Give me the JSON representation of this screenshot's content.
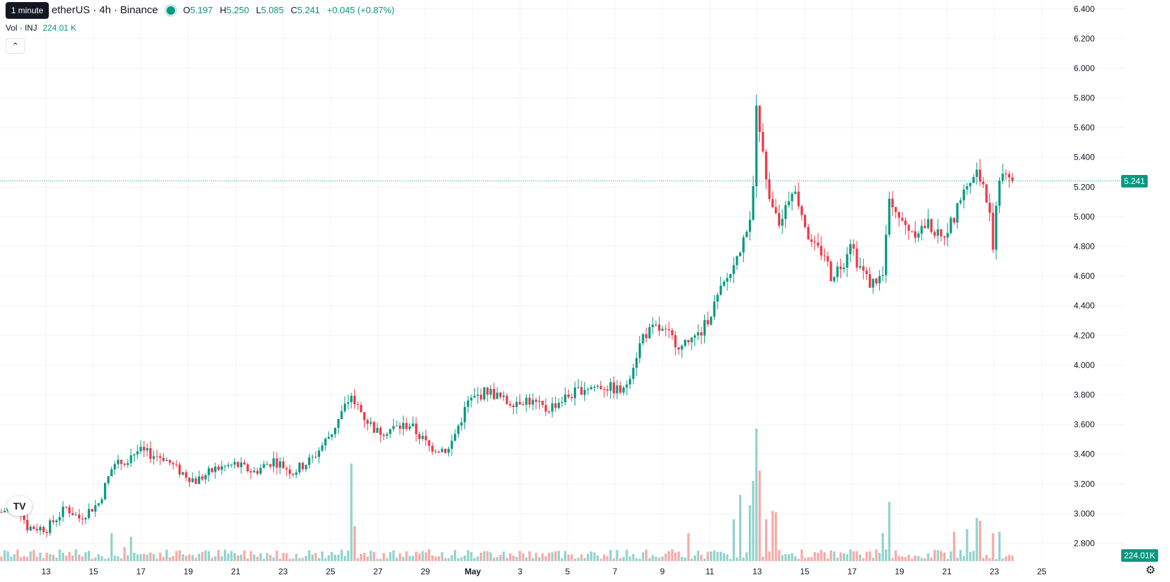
{
  "header": {
    "tooltip": "1 minute",
    "symbol": "etherUS · 4h · Binance",
    "ohlc": [
      {
        "k": "O",
        "v": "5.197"
      },
      {
        "k": "H",
        "v": "5.250"
      },
      {
        "k": "L",
        "v": "5.085"
      },
      {
        "k": "C",
        "v": "5.241"
      }
    ],
    "change": "+0.045 (+0.87%)"
  },
  "volume_legend": {
    "label": "Vol · INJ",
    "value": "224.01 K"
  },
  "collapse_icon": "chevron-up-icon",
  "logo_text": "TV",
  "settings_icon": "gear-icon",
  "colors": {
    "up": "#089981",
    "down": "#F23645",
    "vol_up": "#92D2CC",
    "vol_down": "#F7A9A7",
    "grid": "#F0F3FA"
  },
  "chart_data": {
    "type": "candlestick",
    "timeframe": "4h",
    "y_axis": {
      "ticks": [
        "6.400",
        "6.200",
        "6.000",
        "5.800",
        "5.600",
        "5.400",
        "5.200",
        "5.000",
        "4.800",
        "4.600",
        "4.400",
        "4.200",
        "4.000",
        "3.800",
        "3.600",
        "3.400",
        "3.200",
        "3.000",
        "2.800"
      ],
      "range": [
        2.68,
        6.46
      ]
    },
    "x_axis": {
      "ticks": [
        "13",
        "15",
        "17",
        "19",
        "21",
        "23",
        "25",
        "27",
        "29",
        "May",
        "3",
        "5",
        "7",
        "9",
        "11",
        "13",
        "15",
        "17",
        "19",
        "21",
        "23",
        "25"
      ]
    },
    "last_price": "5.241",
    "last_volume": "224.01K",
    "anchors": [
      {
        "t": 0,
        "v": 3.01
      },
      {
        "t": 5,
        "v": 3.07
      },
      {
        "t": 8,
        "v": 2.91
      },
      {
        "t": 14,
        "v": 2.9
      },
      {
        "t": 20,
        "v": 3.04
      },
      {
        "t": 24,
        "v": 2.97
      },
      {
        "t": 30,
        "v": 3.07
      },
      {
        "t": 34,
        "v": 3.3
      },
      {
        "t": 38,
        "v": 3.36
      },
      {
        "t": 42,
        "v": 3.42
      },
      {
        "t": 50,
        "v": 3.38
      },
      {
        "t": 54,
        "v": 3.3
      },
      {
        "t": 60,
        "v": 3.22
      },
      {
        "t": 66,
        "v": 3.3
      },
      {
        "t": 72,
        "v": 3.33
      },
      {
        "t": 78,
        "v": 3.28
      },
      {
        "t": 84,
        "v": 3.36
      },
      {
        "t": 90,
        "v": 3.28
      },
      {
        "t": 96,
        "v": 3.37
      },
      {
        "t": 102,
        "v": 3.55
      },
      {
        "t": 108,
        "v": 3.8
      },
      {
        "t": 112,
        "v": 3.65
      },
      {
        "t": 116,
        "v": 3.55
      },
      {
        "t": 126,
        "v": 3.6
      },
      {
        "t": 132,
        "v": 3.45
      },
      {
        "t": 138,
        "v": 3.43
      },
      {
        "t": 144,
        "v": 3.75
      },
      {
        "t": 150,
        "v": 3.83
      },
      {
        "t": 156,
        "v": 3.75
      },
      {
        "t": 162,
        "v": 3.77
      },
      {
        "t": 168,
        "v": 3.7
      },
      {
        "t": 174,
        "v": 3.78
      },
      {
        "t": 180,
        "v": 3.85
      },
      {
        "t": 186,
        "v": 3.86
      },
      {
        "t": 192,
        "v": 3.82
      },
      {
        "t": 198,
        "v": 4.2
      },
      {
        "t": 202,
        "v": 4.25
      },
      {
        "t": 206,
        "v": 4.2
      },
      {
        "t": 210,
        "v": 4.12
      },
      {
        "t": 216,
        "v": 4.22
      },
      {
        "t": 222,
        "v": 4.5
      },
      {
        "t": 228,
        "v": 4.75
      },
      {
        "t": 231,
        "v": 5.0
      },
      {
        "t": 232,
        "v": 5.2
      },
      {
        "t": 233,
        "v": 5.75
      },
      {
        "t": 235,
        "v": 5.4
      },
      {
        "t": 237,
        "v": 5.1
      },
      {
        "t": 240,
        "v": 4.95
      },
      {
        "t": 244,
        "v": 5.2
      },
      {
        "t": 246,
        "v": 5.1
      },
      {
        "t": 250,
        "v": 4.8
      },
      {
        "t": 254,
        "v": 4.75
      },
      {
        "t": 256,
        "v": 4.6
      },
      {
        "t": 260,
        "v": 4.7
      },
      {
        "t": 262,
        "v": 4.85
      },
      {
        "t": 264,
        "v": 4.7
      },
      {
        "t": 268,
        "v": 4.55
      },
      {
        "t": 272,
        "v": 4.6
      },
      {
        "t": 274,
        "v": 5.15
      },
      {
        "t": 278,
        "v": 4.95
      },
      {
        "t": 282,
        "v": 4.9
      },
      {
        "t": 286,
        "v": 4.95
      },
      {
        "t": 290,
        "v": 4.85
      },
      {
        "t": 294,
        "v": 5.0
      },
      {
        "t": 298,
        "v": 5.22
      },
      {
        "t": 301,
        "v": 5.3
      },
      {
        "t": 303,
        "v": 5.2
      },
      {
        "t": 305,
        "v": 5.0
      },
      {
        "t": 306,
        "v": 4.82
      },
      {
        "t": 308,
        "v": 5.25
      },
      {
        "t": 310,
        "v": 5.33
      },
      {
        "t": 312,
        "v": 5.241
      }
    ],
    "volume_spikes": [
      {
        "t": 34,
        "v": 40
      },
      {
        "t": 38,
        "v": 20
      },
      {
        "t": 40,
        "v": 35
      },
      {
        "t": 108,
        "v": 140
      },
      {
        "t": 109,
        "v": 50
      },
      {
        "t": 212,
        "v": 40
      },
      {
        "t": 226,
        "v": 60
      },
      {
        "t": 228,
        "v": 95
      },
      {
        "t": 231,
        "v": 80
      },
      {
        "t": 232,
        "v": 115
      },
      {
        "t": 233,
        "v": 190
      },
      {
        "t": 234,
        "v": 130
      },
      {
        "t": 236,
        "v": 60
      },
      {
        "t": 238,
        "v": 72
      },
      {
        "t": 239,
        "v": 70
      },
      {
        "t": 274,
        "v": 85
      },
      {
        "t": 272,
        "v": 40
      },
      {
        "t": 294,
        "v": 42
      },
      {
        "t": 298,
        "v": 46
      },
      {
        "t": 301,
        "v": 62
      },
      {
        "t": 302,
        "v": 58
      },
      {
        "t": 306,
        "v": 40
      },
      {
        "t": 308,
        "v": 42
      }
    ]
  }
}
